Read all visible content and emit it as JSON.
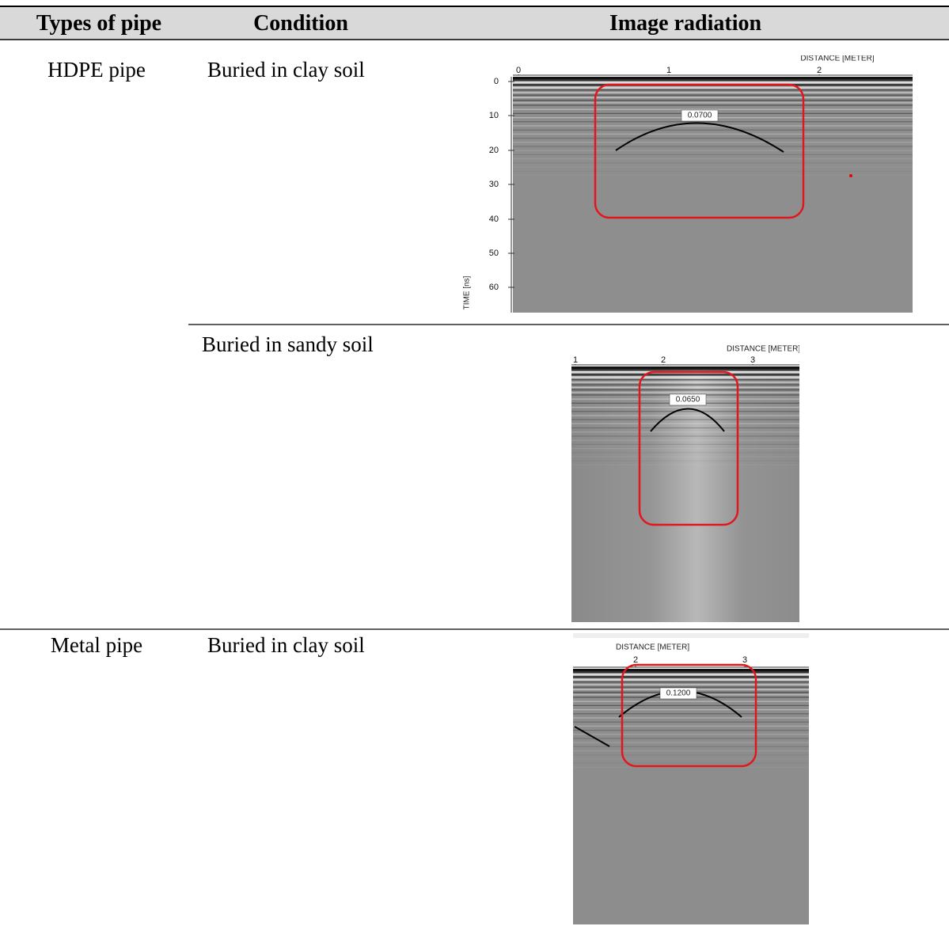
{
  "table": {
    "header": [
      "Types of pipe",
      "Condition",
      "Image radiation"
    ],
    "rows": [
      {
        "pipe": "HDPE pipe",
        "condition": "Buried in clay soil",
        "image": {
          "axis_title": "DISTANCE [METER]",
          "x_ticks": [
            "0",
            "1",
            "2"
          ],
          "y_title": "TIME [ns]",
          "y_ticks": [
            "0",
            "10",
            "20",
            "30",
            "40",
            "50",
            "60"
          ],
          "marker": "0.0700"
        }
      },
      {
        "pipe": null,
        "condition": "Buried in sandy soil",
        "image": {
          "axis_title": "DISTANCE [METER]",
          "x_ticks": [
            "1",
            "2",
            "3"
          ],
          "marker": "0.0650"
        }
      },
      {
        "pipe": "Metal pipe",
        "condition": "Buried in clay soil",
        "image": {
          "axis_title": "DISTANCE [METER]",
          "x_ticks": [
            "2",
            "3"
          ],
          "marker": "0.1200"
        }
      }
    ]
  }
}
